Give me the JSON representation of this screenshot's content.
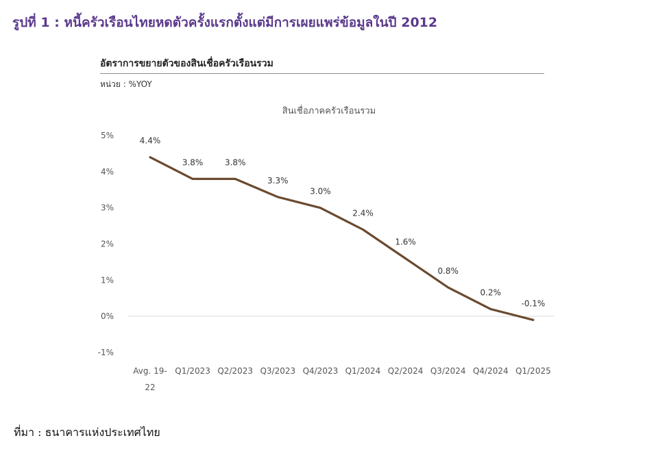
{
  "figure_title": "รูปที่ 1 : หนี้ครัวเรือนไทยหดตัวครั้งแรกตั้งแต่มีการเผยแพร่ข้อมูลในปี 2012",
  "chart_title": "อัตราการขยายตัวของสินเชื่อครัวเรือนรวม",
  "unit_label": "หน่วย : %YOY",
  "source": "ที่มา : ธนาคารแห่งประเทศไทย",
  "colors": {
    "title": "#5b3a8c",
    "line": "#6b4a2f",
    "axis": "#d9d9d9"
  },
  "chart_data": {
    "type": "line",
    "title": "สินเชื่อภาคครัวเรือนรวม",
    "categories": [
      [
        "Avg. 19-",
        "22"
      ],
      "Q1/2023",
      "Q2/2023",
      "Q3/2023",
      "Q4/2023",
      "Q1/2024",
      "Q2/2024",
      "Q3/2024",
      "Q4/2024",
      "Q1/2025"
    ],
    "series": [
      {
        "values": [
          4.4,
          3.8,
          3.8,
          3.3,
          3.0,
          2.4,
          1.6,
          0.8,
          0.2,
          -0.1
        ],
        "labels": [
          "4.4%",
          "3.8%",
          "3.8%",
          "3.3%",
          "3.0%",
          "2.4%",
          "1.6%",
          "0.8%",
          "0.2%",
          "-0.1%"
        ]
      }
    ],
    "yticks": [
      5,
      4,
      3,
      2,
      1,
      0,
      -1
    ],
    "ytick_labels": [
      "5%",
      "4%",
      "3%",
      "2%",
      "1%",
      "0%",
      "-1%"
    ],
    "ylim": [
      -1,
      5
    ],
    "grid": false,
    "legend": "none"
  }
}
